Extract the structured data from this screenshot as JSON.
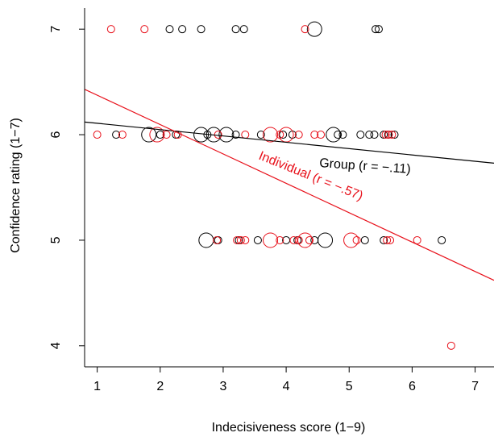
{
  "chart_data": {
    "type": "scatter",
    "xlabel": "Indecisiveness score (1−9)",
    "ylabel": "Confidence rating (1−7)",
    "xlim": [
      0.8,
      7.3
    ],
    "ylim": [
      3.8,
      7.2
    ],
    "x_ticks": [
      "1",
      "2",
      "3",
      "4",
      "5",
      "6",
      "7"
    ],
    "y_ticks": [
      "4",
      "5",
      "6",
      "7"
    ],
    "grid": false,
    "colors": {
      "group": "#000000",
      "individual": "#e8111b"
    },
    "series": [
      {
        "key": "group",
        "points": [
          {
            "x": 2.15,
            "y": 7,
            "s": 1
          },
          {
            "x": 2.35,
            "y": 7,
            "s": 1
          },
          {
            "x": 2.65,
            "y": 7,
            "s": 1
          },
          {
            "x": 3.2,
            "y": 7,
            "s": 1
          },
          {
            "x": 3.33,
            "y": 7,
            "s": 1
          },
          {
            "x": 4.45,
            "y": 7,
            "s": 2
          },
          {
            "x": 5.42,
            "y": 7,
            "s": 1
          },
          {
            "x": 5.47,
            "y": 7,
            "s": 1
          },
          {
            "x": 1.3,
            "y": 6,
            "s": 1
          },
          {
            "x": 1.82,
            "y": 6,
            "s": 2
          },
          {
            "x": 2.0,
            "y": 6,
            "s": 1
          },
          {
            "x": 2.25,
            "y": 6,
            "s": 1
          },
          {
            "x": 2.65,
            "y": 6,
            "s": 2
          },
          {
            "x": 2.75,
            "y": 6,
            "s": 1
          },
          {
            "x": 2.85,
            "y": 6,
            "s": 2
          },
          {
            "x": 3.05,
            "y": 6,
            "s": 2
          },
          {
            "x": 3.2,
            "y": 6,
            "s": 1
          },
          {
            "x": 3.6,
            "y": 6,
            "s": 1
          },
          {
            "x": 3.95,
            "y": 6,
            "s": 1
          },
          {
            "x": 4.1,
            "y": 6,
            "s": 1
          },
          {
            "x": 4.75,
            "y": 6,
            "s": 2
          },
          {
            "x": 4.82,
            "y": 6,
            "s": 1
          },
          {
            "x": 4.9,
            "y": 6,
            "s": 1
          },
          {
            "x": 5.18,
            "y": 6,
            "s": 1
          },
          {
            "x": 5.32,
            "y": 6,
            "s": 1
          },
          {
            "x": 5.4,
            "y": 6,
            "s": 1
          },
          {
            "x": 5.55,
            "y": 6,
            "s": 1
          },
          {
            "x": 5.62,
            "y": 6,
            "s": 1
          },
          {
            "x": 5.72,
            "y": 6,
            "s": 1
          },
          {
            "x": 2.73,
            "y": 5,
            "s": 2
          },
          {
            "x": 2.92,
            "y": 5,
            "s": 1
          },
          {
            "x": 3.25,
            "y": 5,
            "s": 1
          },
          {
            "x": 3.55,
            "y": 5,
            "s": 1
          },
          {
            "x": 4.0,
            "y": 5,
            "s": 1
          },
          {
            "x": 4.18,
            "y": 5,
            "s": 1
          },
          {
            "x": 4.45,
            "y": 5,
            "s": 1
          },
          {
            "x": 4.62,
            "y": 5,
            "s": 2
          },
          {
            "x": 5.25,
            "y": 5,
            "s": 1
          },
          {
            "x": 5.55,
            "y": 5,
            "s": 1
          },
          {
            "x": 6.47,
            "y": 5,
            "s": 1
          }
        ],
        "fit": {
          "x0": 0.8,
          "y0": 6.12,
          "x1": 7.3,
          "y1": 5.73
        },
        "label": "Group (r = −.11)"
      },
      {
        "key": "individual",
        "points": [
          {
            "x": 1.22,
            "y": 7,
            "s": 1
          },
          {
            "x": 1.75,
            "y": 7,
            "s": 1
          },
          {
            "x": 4.3,
            "y": 7,
            "s": 1
          },
          {
            "x": 1.0,
            "y": 6,
            "s": 1
          },
          {
            "x": 1.4,
            "y": 6,
            "s": 1
          },
          {
            "x": 1.95,
            "y": 6,
            "s": 2
          },
          {
            "x": 2.1,
            "y": 6,
            "s": 1
          },
          {
            "x": 2.28,
            "y": 6,
            "s": 1
          },
          {
            "x": 2.92,
            "y": 6,
            "s": 1
          },
          {
            "x": 3.35,
            "y": 6,
            "s": 1
          },
          {
            "x": 3.75,
            "y": 6,
            "s": 2
          },
          {
            "x": 3.9,
            "y": 6,
            "s": 1
          },
          {
            "x": 4.0,
            "y": 6,
            "s": 2
          },
          {
            "x": 4.2,
            "y": 6,
            "s": 1
          },
          {
            "x": 4.45,
            "y": 6,
            "s": 1
          },
          {
            "x": 4.55,
            "y": 6,
            "s": 1
          },
          {
            "x": 5.58,
            "y": 6,
            "s": 1
          },
          {
            "x": 5.63,
            "y": 6,
            "s": 1
          },
          {
            "x": 5.68,
            "y": 6,
            "s": 1
          },
          {
            "x": 2.9,
            "y": 5,
            "s": 1
          },
          {
            "x": 3.22,
            "y": 5,
            "s": 1
          },
          {
            "x": 3.28,
            "y": 5,
            "s": 1
          },
          {
            "x": 3.35,
            "y": 5,
            "s": 1
          },
          {
            "x": 3.75,
            "y": 5,
            "s": 2
          },
          {
            "x": 3.9,
            "y": 5,
            "s": 1
          },
          {
            "x": 4.12,
            "y": 5,
            "s": 1
          },
          {
            "x": 4.2,
            "y": 5,
            "s": 1
          },
          {
            "x": 4.3,
            "y": 5,
            "s": 2
          },
          {
            "x": 4.37,
            "y": 5,
            "s": 1
          },
          {
            "x": 5.03,
            "y": 5,
            "s": 2
          },
          {
            "x": 5.12,
            "y": 5,
            "s": 1
          },
          {
            "x": 5.6,
            "y": 5,
            "s": 1
          },
          {
            "x": 5.65,
            "y": 5,
            "s": 1
          },
          {
            "x": 6.08,
            "y": 5,
            "s": 1
          },
          {
            "x": 6.62,
            "y": 4,
            "s": 1
          }
        ],
        "fit": {
          "x0": 0.8,
          "y0": 6.43,
          "x1": 7.3,
          "y1": 4.62
        },
        "label": "Individual (r = −.57)"
      }
    ]
  }
}
